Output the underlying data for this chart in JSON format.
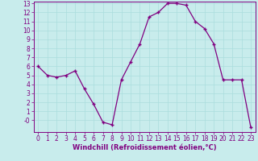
{
  "x": [
    0,
    1,
    2,
    3,
    4,
    5,
    6,
    7,
    8,
    9,
    10,
    11,
    12,
    13,
    14,
    15,
    16,
    17,
    18,
    19,
    20,
    21,
    22,
    23
  ],
  "y": [
    6.0,
    5.0,
    4.8,
    5.0,
    5.5,
    3.5,
    1.8,
    -0.2,
    -0.5,
    4.5,
    6.5,
    8.5,
    11.5,
    12.0,
    13.0,
    13.0,
    12.8,
    11.0,
    10.2,
    8.5,
    4.5,
    4.5,
    4.5,
    -0.8
  ],
  "line_color": "#800080",
  "marker": "+",
  "marker_color": "#800080",
  "bg_color": "#c8ecec",
  "grid_color": "#aadddd",
  "xlabel": "Windchill (Refroidissement éolien,°C)",
  "xlabel_color": "#800080",
  "tick_color": "#800080",
  "spine_color": "#800080",
  "ylim_min": -1,
  "ylim_max": 13,
  "xlim_min": 0,
  "xlim_max": 23,
  "yticks": [
    0,
    1,
    2,
    3,
    4,
    5,
    6,
    7,
    8,
    9,
    10,
    11,
    12,
    13
  ],
  "xticks": [
    0,
    1,
    2,
    3,
    4,
    5,
    6,
    7,
    8,
    9,
    10,
    11,
    12,
    13,
    14,
    15,
    16,
    17,
    18,
    19,
    20,
    21,
    22,
    23
  ],
  "tick_fontsize": 5.5,
  "xlabel_fontsize": 6.0
}
